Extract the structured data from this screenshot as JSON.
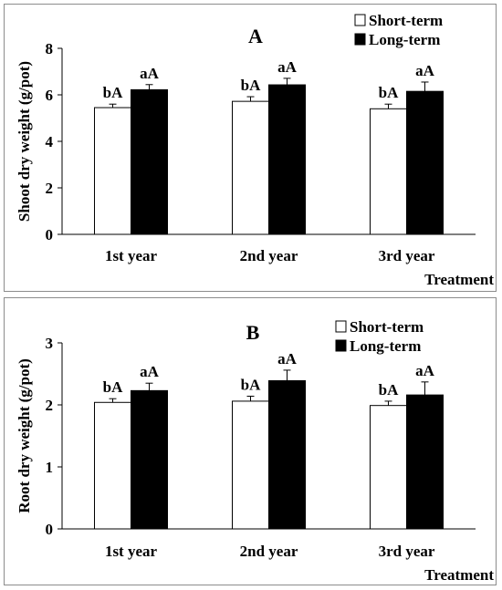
{
  "chart_data": [
    {
      "type": "bar",
      "panel_label": "A",
      "ylabel": "Shoot dry weight (g/pot)",
      "xlabel": "Treatment",
      "categories": [
        "1st year",
        "2nd year",
        "3rd year"
      ],
      "ylim": [
        0,
        8
      ],
      "yticks": [
        "0",
        "2",
        "4",
        "6",
        "8"
      ],
      "legend_position": "top-right",
      "series": [
        {
          "name": "Short-term",
          "color": "#ffffff",
          "values": [
            5.45,
            5.72,
            5.4
          ],
          "errors": [
            0.15,
            0.2,
            0.2
          ],
          "labels": [
            "bA",
            "bA",
            "bA"
          ]
        },
        {
          "name": "Long-term",
          "color": "#000000",
          "values": [
            6.22,
            6.43,
            6.15
          ],
          "errors": [
            0.22,
            0.28,
            0.4
          ],
          "labels": [
            "aA",
            "aA",
            "aA"
          ]
        }
      ]
    },
    {
      "type": "bar",
      "panel_label": "B",
      "ylabel": "Root dry weight (g/pot)",
      "xlabel": "Treatment",
      "categories": [
        "1st year",
        "2nd year",
        "3rd year"
      ],
      "ylim": [
        0,
        3
      ],
      "yticks": [
        "0",
        "1",
        "2",
        "3"
      ],
      "legend_position": "top-right",
      "series": [
        {
          "name": "Short-term",
          "color": "#ffffff",
          "values": [
            2.04,
            2.06,
            1.99
          ],
          "errors": [
            0.06,
            0.08,
            0.07
          ],
          "labels": [
            "bA",
            "bA",
            "bA"
          ]
        },
        {
          "name": "Long-term",
          "color": "#000000",
          "values": [
            2.23,
            2.39,
            2.16
          ],
          "errors": [
            0.12,
            0.17,
            0.21
          ],
          "labels": [
            "aA",
            "aA",
            "aA"
          ]
        }
      ]
    }
  ]
}
